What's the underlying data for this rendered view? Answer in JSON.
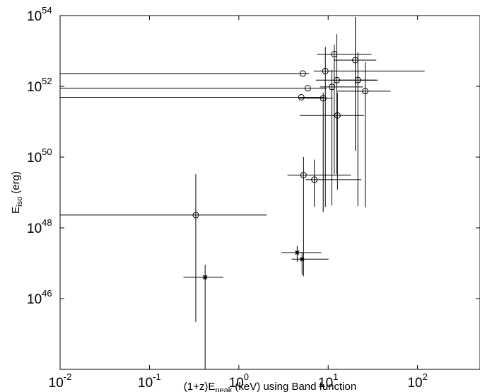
{
  "chart_data": {
    "type": "scatter",
    "xscale": "log",
    "yscale": "log",
    "xlim": [
      0.01,
      500
    ],
    "ylim": [
      1e+44,
      1e+54
    ],
    "grid": false,
    "legend": "none",
    "xlabel": {
      "pre": "(1+z)E",
      "sub": "peak",
      "post": " (keV) using Band function"
    },
    "ylabel": {
      "pre": "E",
      "sub": "iso",
      "post": " (erg)"
    },
    "x_ticks": [
      {
        "value": 0.01,
        "base": "10",
        "exp": "-2"
      },
      {
        "value": 0.1,
        "base": "10",
        "exp": "-1"
      },
      {
        "value": 1,
        "base": "10",
        "exp": "0"
      },
      {
        "value": 10,
        "base": "10",
        "exp": "1"
      },
      {
        "value": 100,
        "base": "10",
        "exp": "2"
      }
    ],
    "y_ticks": [
      {
        "value": 1e+46,
        "base": "10",
        "exp": "46"
      },
      {
        "value": 1e+48,
        "base": "10",
        "exp": "48"
      },
      {
        "value": 1e+50,
        "base": "10",
        "exp": "50"
      },
      {
        "value": 1e+52,
        "base": "10",
        "exp": "52"
      },
      {
        "value": 1e+54,
        "base": "10",
        "exp": "54"
      }
    ],
    "series": [
      {
        "marker": "circle",
        "points": [
          {
            "x": 0.33,
            "y": 2.3e+48,
            "xmin": 0.01,
            "xmax": 2.05,
            "ymin": 2.2e+45,
            "ymax": 3.3e+49
          },
          {
            "x": 5.2,
            "y": 2.3e+52,
            "xmin": 0.01,
            "xmax": 6.1,
            "ymin": null,
            "ymax": null
          },
          {
            "x": 5.9,
            "y": 8.8e+51,
            "xmin": 0.01,
            "xmax": 9.6,
            "ymin": null,
            "ymax": null
          },
          {
            "x": 5.0,
            "y": 4.9e+51,
            "xmin": 0.01,
            "xmax": 9.1,
            "ymin": null,
            "ymax": null
          },
          {
            "x": 8.8,
            "y": 4.6e+51,
            "xmin": 4.7,
            "xmax": 11.2,
            "ymin": 2.8e+48,
            "ymax": 6.6e+51
          },
          {
            "x": 9.3,
            "y": 2.7e+52,
            "xmin": 6.9,
            "xmax": 120,
            "ymin": 3.9e+48,
            "ymax": 1.3e+53
          },
          {
            "x": 11.7,
            "y": 8.1e+52,
            "xmin": 7.5,
            "xmax": 30.5,
            "ymin": 3.3e+49,
            "ymax": 1.5e+53
          },
          {
            "x": 12.5,
            "y": 1.5e+52,
            "xmin": 7.3,
            "xmax": 36,
            "ymin": 3.3e+49,
            "ymax": 3e+53
          },
          {
            "x": 11.0,
            "y": 9.6e+51,
            "xmin": 8.1,
            "xmax": 24.5,
            "ymin": 4.3e+48,
            "ymax": 2.9e+52
          },
          {
            "x": 12.7,
            "y": 1.5e+51,
            "xmin": 4.8,
            "xmax": 25.2,
            "ymin": 1.2e+49,
            "ymax": 6.6e+51
          },
          {
            "x": 20.1,
            "y": 5.5e+52,
            "xmin": 11.5,
            "xmax": 34.5,
            "ymin": 1.5e+50,
            "ymax": 9.2e+53
          },
          {
            "x": 21.5,
            "y": 1.5e+52,
            "xmin": 11.5,
            "xmax": 33.5,
            "ymin": 4.1e+48,
            "ymax": 9e+52
          },
          {
            "x": 26.0,
            "y": 7.3e+51,
            "xmin": 12.5,
            "xmax": 50,
            "ymin": 3.8e+48,
            "ymax": 4.9e+52
          },
          {
            "x": 5.3,
            "y": 3.1e+49,
            "xmin": 3.5,
            "xmax": 18.0,
            "ymin": 4.3e+46,
            "ymax": 1e+50
          },
          {
            "x": 7.0,
            "y": 2.3e+49,
            "xmin": 5.6,
            "xmax": 23.5,
            "ymin": 3.9e+48,
            "ymax": 8.5e+49
          }
        ]
      },
      {
        "marker": "asterisk",
        "points": [
          {
            "x": 0.42,
            "y": 4e+46,
            "xmin": 0.24,
            "xmax": 0.67,
            "ymin": 1e+44,
            "ymax": 9e+46
          },
          {
            "x": 4.5,
            "y": 2e+47,
            "xmin": 3.0,
            "xmax": 8.4,
            "ymin": 1.1e+47,
            "ymax": 3.1e+47
          },
          {
            "x": 5.1,
            "y": 1.3e+47,
            "xmin": 3.9,
            "xmax": 10.1,
            "ymin": 4.7e+46,
            "ymax": 2e+47
          }
        ]
      }
    ]
  }
}
